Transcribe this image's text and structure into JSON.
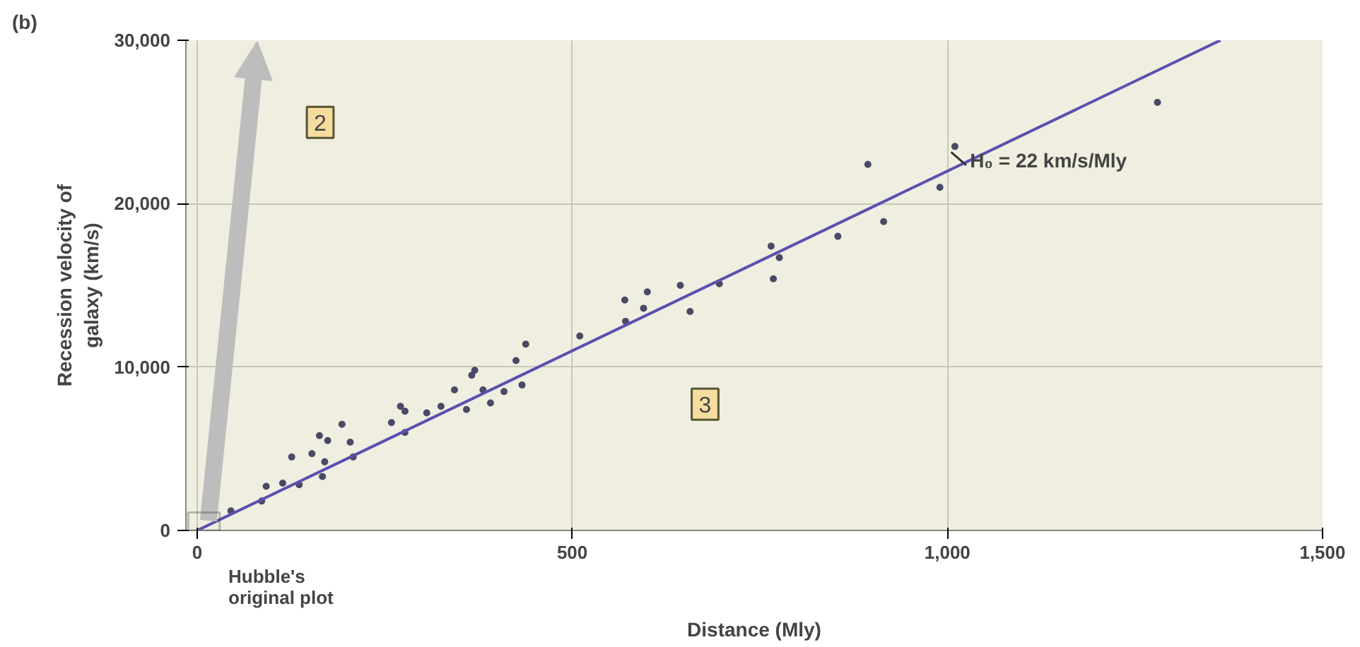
{
  "chart_data": {
    "type": "scatter",
    "xlabel": "Distance (Mly)",
    "ylabel": "Recession velocity of\ngalaxy (km/s)",
    "xlim": [
      -15,
      1500
    ],
    "ylim": [
      0,
      30000
    ],
    "xticks": [
      0,
      {
        "value": 500,
        "label": "500"
      },
      {
        "value": 1000,
        "label": "1,000"
      },
      {
        "value": 1500,
        "label": "1,500"
      }
    ],
    "yticks": [
      0,
      {
        "value": 10000,
        "label": "10,000"
      },
      {
        "value": 20000,
        "label": "20,000"
      },
      {
        "value": 30000,
        "label": "30,000"
      }
    ],
    "grid": true,
    "marker": "circle",
    "series": [
      {
        "color": "#4a4a66",
        "x": [
          45,
          86,
          92,
          114,
          136,
          126,
          153,
          167,
          163,
          174,
          193,
          204,
          208,
          170,
          259,
          271,
          277,
          277,
          306,
          325,
          343,
          359,
          366,
          370,
          381,
          391,
          409,
          425,
          433,
          438,
          510,
          570,
          571,
          595,
          600,
          644,
          657,
          696,
          765,
          776,
          768,
          854,
          894,
          915,
          990,
          1010,
          1280
        ],
        "values": [
          1200,
          1800,
          2700,
          2900,
          2800,
          4500,
          4700,
          3300,
          5800,
          5500,
          6500,
          5400,
          4500,
          4200,
          6600,
          7600,
          7300,
          6000,
          7200,
          7600,
          8600,
          7400,
          9500,
          9800,
          8600,
          7800,
          8500,
          10400,
          8900,
          11400,
          11900,
          14100,
          12800,
          13600,
          14600,
          15000,
          13400,
          15100,
          17400,
          16700,
          15400,
          18000,
          22400,
          18900,
          21000,
          23500,
          26200
        ]
      },
      {
        "type": "line",
        "marker": "none",
        "color": "#5b4fb0",
        "x": [
          0,
          1364
        ],
        "values": [
          0,
          30000
        ]
      }
    ],
    "annotations": [
      "(b)",
      "2",
      "3",
      {
        "text": "H₀ = 22 km/s/Mly",
        "x": 1030,
        "y": 22650
      },
      {
        "text": "Hubble's\noriginal plot",
        "x": 9,
        "y": 550
      }
    ]
  }
}
